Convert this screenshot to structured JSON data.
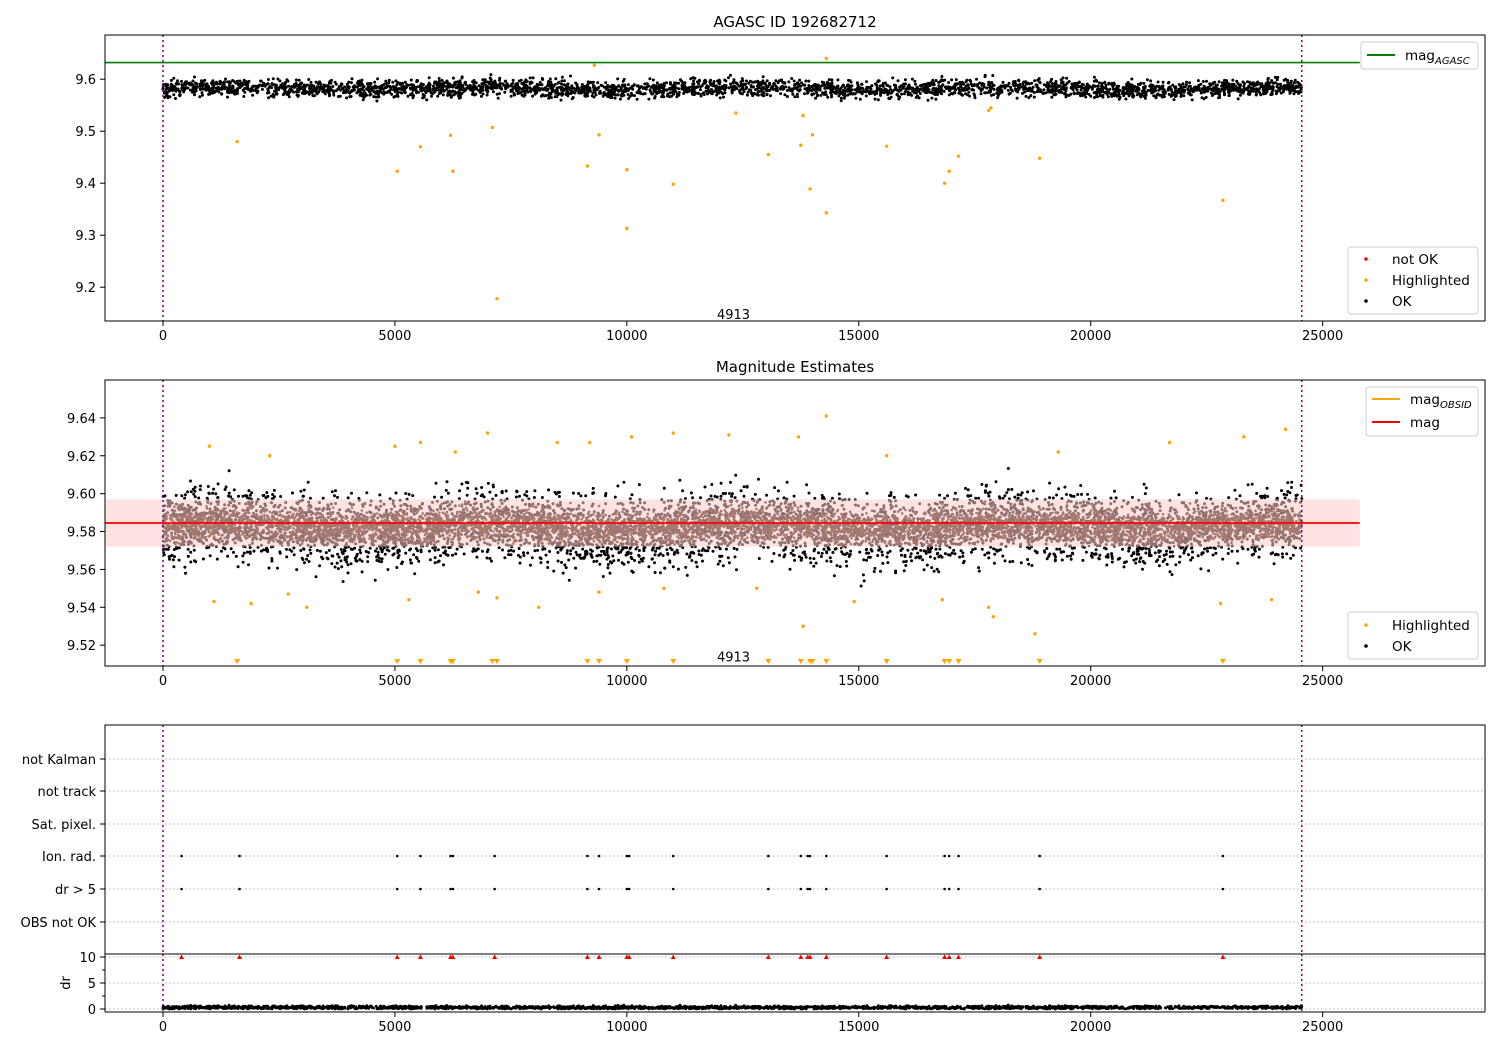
{
  "chart_data": [
    {
      "type": "scatter",
      "title": "AGASC ID 192682712",
      "xlim": [
        -1250,
        28500
      ],
      "ylim": [
        9.135,
        9.685
      ],
      "x_ticks": [
        0,
        5000,
        10000,
        15000,
        20000,
        25000
      ],
      "y_ticks": [
        9.2,
        9.3,
        9.4,
        9.5,
        9.6
      ],
      "annotation": {
        "text": "4913",
        "x": 12300,
        "y": 9.148
      },
      "vlines": [
        0,
        24550
      ],
      "hline": {
        "y": 9.632,
        "xmax": 25800,
        "color": "#008000"
      },
      "legend_lines": [
        {
          "label": "mag",
          "sub": "AGASC",
          "color": "#008000"
        }
      ],
      "legend_markers": [
        {
          "label": "not OK",
          "color": "#ff0000"
        },
        {
          "label": "Highlighted",
          "color": "#ffa500"
        },
        {
          "label": "OK",
          "color": "#000000"
        }
      ],
      "series": [
        {
          "label": "OK",
          "color": "#000000",
          "x_range": [
            0,
            24550
          ],
          "center": 9.582,
          "spread": 0.016
        },
        {
          "label": "Highlighted",
          "color": "#ffa500",
          "points": [
            [
              1600,
              9.48
            ],
            [
              5050,
              9.423
            ],
            [
              5550,
              9.47
            ],
            [
              6200,
              9.492
            ],
            [
              6250,
              9.423
            ],
            [
              7100,
              9.507
            ],
            [
              7200,
              9.178
            ],
            [
              9150,
              9.433
            ],
            [
              9400,
              9.493
            ],
            [
              10000,
              9.426
            ],
            [
              10000,
              9.313
            ],
            [
              11000,
              9.398
            ],
            [
              12350,
              9.535
            ],
            [
              13050,
              9.455
            ],
            [
              13750,
              9.473
            ],
            [
              13800,
              9.53
            ],
            [
              13950,
              9.389
            ],
            [
              14000,
              9.493
            ],
            [
              14300,
              9.343
            ],
            [
              15600,
              9.471
            ],
            [
              16850,
              9.4
            ],
            [
              16950,
              9.423
            ],
            [
              17150,
              9.452
            ],
            [
              18900,
              9.448
            ],
            [
              22850,
              9.367
            ],
            [
              14300,
              9.64
            ],
            [
              9300,
              9.627
            ],
            [
              17800,
              9.54
            ],
            [
              17850,
              9.545
            ]
          ]
        }
      ]
    },
    {
      "type": "scatter",
      "title": "Magnitude Estimates",
      "xlim": [
        -1250,
        28500
      ],
      "ylim": [
        9.509,
        9.66
      ],
      "x_ticks": [
        0,
        5000,
        10000,
        15000,
        20000,
        25000
      ],
      "y_ticks": [
        9.52,
        9.54,
        9.56,
        9.58,
        9.6,
        9.62,
        9.64
      ],
      "annotation": {
        "text": "4913",
        "x": 12300,
        "y": 9.514
      },
      "vlines": [
        0,
        24550
      ],
      "hline": {
        "y": 9.5845,
        "xmax": 25800,
        "color": "#ff0000"
      },
      "band": {
        "y0": 9.572,
        "y1": 9.597,
        "xmax": 25800,
        "color": "#ffcccc"
      },
      "legend_lines": [
        {
          "label": "mag",
          "sub": "OBSID",
          "color": "#ffa500"
        },
        {
          "label": "mag",
          "sub": "",
          "color": "#ff0000"
        }
      ],
      "legend_markers": [
        {
          "label": "Highlighted",
          "color": "#ffa500"
        },
        {
          "label": "OK",
          "color": "#000000"
        }
      ],
      "series": [
        {
          "label": "OK",
          "color": "#000000",
          "x_range": [
            0,
            24550
          ],
          "center": 9.582,
          "spread": 0.018
        },
        {
          "label": "mag_OBSID",
          "color": "#3a1400",
          "x_range": [
            0,
            24550
          ],
          "center": 9.583,
          "spread": 0.008
        },
        {
          "label": "Highlighted",
          "color": "#ffa500",
          "points": [
            [
              1000,
              9.625
            ],
            [
              1100,
              9.543
            ],
            [
              1900,
              9.542
            ],
            [
              2300,
              9.62
            ],
            [
              2700,
              9.547
            ],
            [
              3100,
              9.54
            ],
            [
              5000,
              9.625
            ],
            [
              5300,
              9.544
            ],
            [
              5550,
              9.627
            ],
            [
              6300,
              9.622
            ],
            [
              6800,
              9.548
            ],
            [
              7000,
              9.632
            ],
            [
              7200,
              9.545
            ],
            [
              8100,
              9.54
            ],
            [
              8500,
              9.627
            ],
            [
              9200,
              9.627
            ],
            [
              9400,
              9.548
            ],
            [
              10100,
              9.63
            ],
            [
              10800,
              9.55
            ],
            [
              11000,
              9.632
            ],
            [
              12200,
              9.631
            ],
            [
              12800,
              9.55
            ],
            [
              13700,
              9.63
            ],
            [
              13800,
              9.53
            ],
            [
              14300,
              9.641
            ],
            [
              14900,
              9.543
            ],
            [
              15600,
              9.62
            ],
            [
              16800,
              9.544
            ],
            [
              17800,
              9.54
            ],
            [
              17900,
              9.535
            ],
            [
              18800,
              9.526
            ],
            [
              19300,
              9.622
            ],
            [
              21700,
              9.627
            ],
            [
              22800,
              9.542
            ],
            [
              23300,
              9.63
            ],
            [
              23900,
              9.544
            ],
            [
              24200,
              9.634
            ]
          ]
        },
        {
          "label": "Highlighted below range",
          "color": "#ffa500",
          "x": [
            1600,
            5050,
            5550,
            6200,
            6250,
            7100,
            7200,
            9150,
            9400,
            10000,
            11000,
            13050,
            13750,
            13950,
            14000,
            14300,
            15600,
            16850,
            16950,
            17150,
            18900,
            22850
          ]
        }
      ]
    },
    {
      "type": "scatter",
      "xlim": [
        -1250,
        28500
      ],
      "y_categories": [
        "not Kalman",
        "not track",
        "Sat. pixel.",
        "Ion. rad.",
        "dr > 5",
        "OBS not OK"
      ],
      "flag_x": [
        400,
        1650,
        5050,
        5550,
        6200,
        6250,
        7150,
        9150,
        9400,
        10000,
        10050,
        11000,
        13050,
        13750,
        13900,
        13950,
        14300,
        15600,
        16850,
        16950,
        17150,
        18900,
        22850
      ],
      "vlines": [
        0,
        24550
      ]
    },
    {
      "type": "scatter",
      "ylabel": "dr",
      "xlim": [
        -1250,
        28500
      ],
      "ylim": [
        -0.5,
        10.5
      ],
      "x_ticks": [
        0,
        5000,
        10000,
        15000,
        20000,
        25000
      ],
      "y_ticks": [
        0,
        5,
        10
      ],
      "vlines": [
        0,
        24550
      ],
      "series": [
        {
          "label": "dr",
          "color": "#000000",
          "x_range": [
            0,
            24550
          ],
          "center": 0.3,
          "spread": 0.3
        },
        {
          "label": "dr clipped",
          "color": "#ff0000",
          "y": 10,
          "x": [
            400,
            1650,
            5050,
            5550,
            6200,
            6250,
            7150,
            9150,
            9400,
            10000,
            10050,
            11000,
            13050,
            13750,
            13900,
            13950,
            14300,
            15600,
            16850,
            16950,
            17150,
            18900,
            22850
          ]
        }
      ]
    }
  ]
}
